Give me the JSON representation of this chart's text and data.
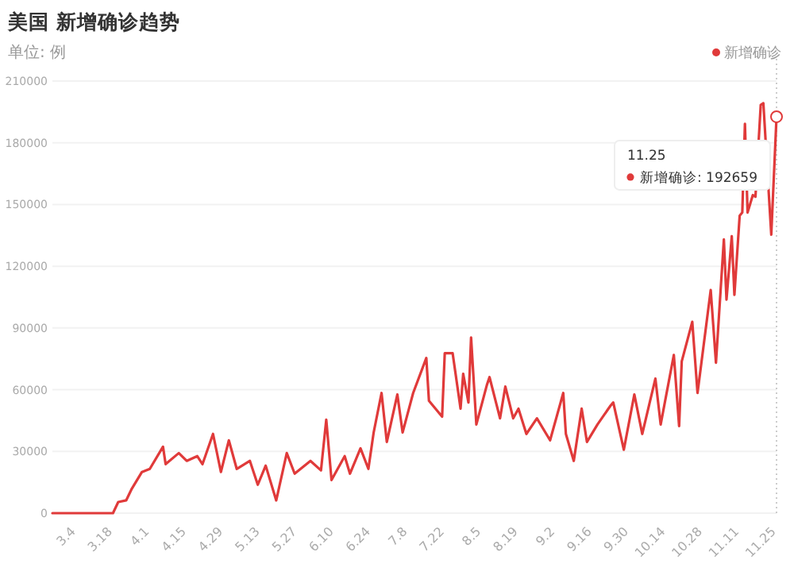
{
  "chart_data": {
    "type": "line",
    "title": "美国 新增确诊趋势",
    "subtitle": "单位: 例",
    "x": [
      "--02-24",
      "--03-18",
      "--03-20",
      "--03-23",
      "--03-25",
      "--03-29",
      "--04-01",
      "--04-06",
      "--04-07",
      "--04-12",
      "--04-15",
      "--04-19",
      "--04-21",
      "--04-25",
      "--04-28",
      "--05-01",
      "--05-04",
      "--05-09",
      "--05-12",
      "--05-15",
      "--05-19",
      "--05-23",
      "--05-26",
      "--06-01",
      "--06-05",
      "--06-07",
      "--06-09",
      "--06-14",
      "--06-16",
      "--06-20",
      "--06-23",
      "--06-25",
      "--06-28",
      "--06-30",
      "--07-04",
      "--07-06",
      "--07-10",
      "--07-15",
      "--07-16",
      "--07-21",
      "--07-22",
      "--07-25",
      "--07-28",
      "--07-29",
      "--07-31",
      "--08-01",
      "--08-03",
      "--08-07",
      "--08-08",
      "--08-12",
      "--08-14",
      "--08-17",
      "--08-19",
      "--08-22",
      "--08-26",
      "--08-31",
      "--09-05",
      "--09-06",
      "--09-09",
      "--09-12",
      "--09-14",
      "--09-18",
      "--09-23",
      "--09-24",
      "--09-28",
      "--10-02",
      "--10-05",
      "--10-10",
      "--10-12",
      "--10-17",
      "--10-19",
      "--10-20",
      "--10-24",
      "--10-26",
      "--10-31",
      "--11-02",
      "--11-05",
      "--11-06",
      "--11-08",
      "--11-09",
      "--11-11",
      "--11-12",
      "--11-13",
      "--11-14",
      "--11-16",
      "--11-17",
      "--11-19",
      "--11-20",
      "--11-23",
      "--11-25"
    ],
    "series": [
      {
        "name": "新增确诊",
        "color": "#e03a3a",
        "values": [
          0,
          0,
          5400,
          6200,
          11500,
          20000,
          21500,
          32300,
          23800,
          29200,
          25400,
          27700,
          23800,
          38500,
          20000,
          35400,
          21500,
          25400,
          13800,
          23100,
          6200,
          29200,
          19200,
          25400,
          20800,
          45400,
          16100,
          27700,
          19200,
          31500,
          21500,
          39200,
          58400,
          34600,
          57700,
          39200,
          58400,
          75400,
          54600,
          46900,
          77700,
          77700,
          50800,
          67700,
          53800,
          85400,
          43100,
          62300,
          66100,
          46100,
          61500,
          46100,
          50800,
          38500,
          46100,
          35400,
          58400,
          38500,
          25400,
          50800,
          34600,
          43100,
          52300,
          53800,
          30800,
          57700,
          38500,
          65400,
          43100,
          76900,
          42300,
          73800,
          93000,
          58400,
          108400,
          73100,
          133000,
          103800,
          134600,
          106100,
          144600,
          146100,
          189200,
          146100,
          154600,
          153800,
          198400,
          199200,
          135300,
          192659
        ]
      }
    ],
    "xlim": [
      "--02-24",
      "--11-25"
    ],
    "xticks": [
      {
        "value": "--03-04",
        "label": "3.4"
      },
      {
        "value": "--03-18",
        "label": "3.18"
      },
      {
        "value": "--04-01",
        "label": "4.1"
      },
      {
        "value": "--04-15",
        "label": "4.15"
      },
      {
        "value": "--04-29",
        "label": "4.29"
      },
      {
        "value": "--05-13",
        "label": "5.13"
      },
      {
        "value": "--05-27",
        "label": "5.27"
      },
      {
        "value": "--06-10",
        "label": "6.10"
      },
      {
        "value": "--06-24",
        "label": "6.24"
      },
      {
        "value": "--07-08",
        "label": "7.8"
      },
      {
        "value": "--07-22",
        "label": "7.22"
      },
      {
        "value": "--08-05",
        "label": "8.5"
      },
      {
        "value": "--08-19",
        "label": "8.19"
      },
      {
        "value": "--09-02",
        "label": "9.2"
      },
      {
        "value": "--09-16",
        "label": "9.16"
      },
      {
        "value": "--09-30",
        "label": "9.30"
      },
      {
        "value": "--10-14",
        "label": "10.14"
      },
      {
        "value": "--10-28",
        "label": "10.28"
      },
      {
        "value": "--11-11",
        "label": "11.11"
      },
      {
        "value": "--11-25",
        "label": "11.25"
      }
    ],
    "ylim": [
      0,
      210000
    ],
    "yticks": [
      0,
      30000,
      60000,
      90000,
      120000,
      150000,
      180000,
      210000
    ],
    "grid": "y",
    "legend": "top right",
    "marker": "none",
    "line_style": "solid",
    "ref_lines": [
      {
        "axis": "x",
        "value": "--11-25",
        "line_style": "dotted",
        "color": "#cccccc"
      }
    ],
    "annotations": [
      "11.25",
      "新增确诊: 192659"
    ]
  }
}
